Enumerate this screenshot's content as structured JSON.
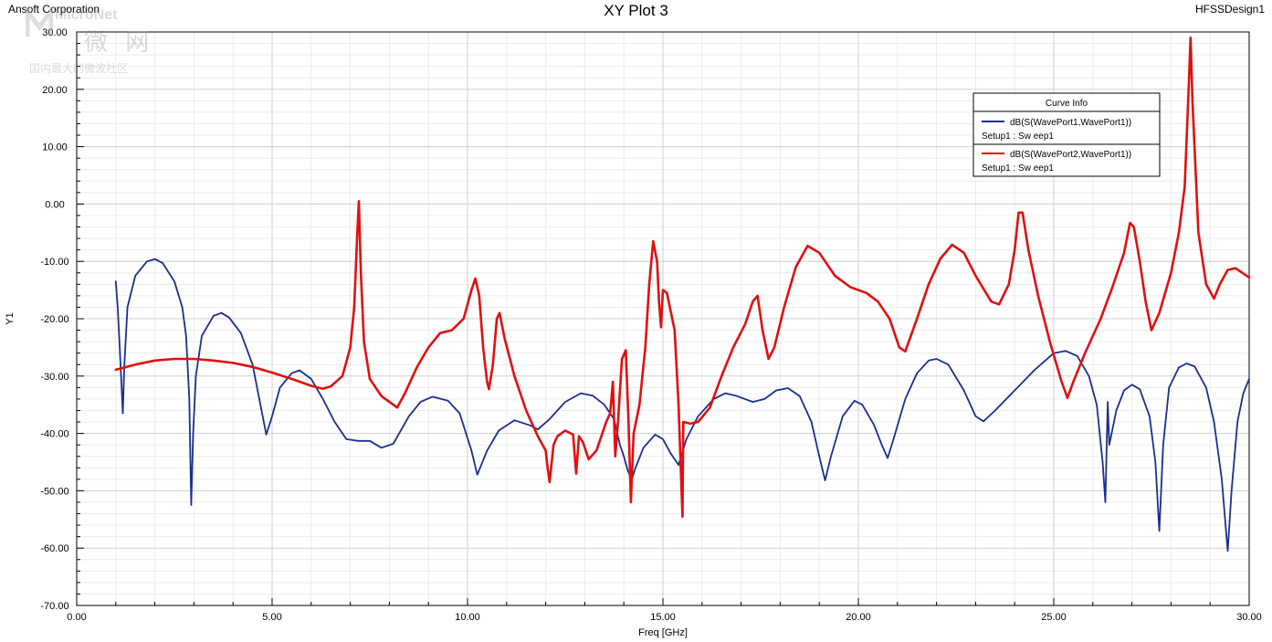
{
  "header": {
    "company": "Ansoft Corporation",
    "title": "XY Plot 3",
    "design": "HFSSDesign1"
  },
  "watermark": {
    "name": "MicroNet",
    "chinese": "微 网",
    "subtitle": "国内最大的微波社区"
  },
  "chart_data": {
    "type": "line",
    "title": "XY Plot 3",
    "xlabel": "Freq [GHz]",
    "ylabel": "Y1",
    "xlim": [
      0,
      30
    ],
    "ylim": [
      -70,
      30
    ],
    "x_ticks": [
      "0.00",
      "5.00",
      "10.00",
      "15.00",
      "20.00",
      "25.00",
      "30.00"
    ],
    "y_ticks": [
      "30.00",
      "20.00",
      "10.00",
      "0.00",
      "-10.00",
      "-20.00",
      "-30.00",
      "-40.00",
      "-50.00",
      "-60.00",
      "-70.00"
    ],
    "grid": true,
    "legend": {
      "title": "Curve Info",
      "placement": "top-right",
      "entries": [
        {
          "name": "dB(S(WavePort1,WavePort1))",
          "setup": "Setup1 : Sw eep1",
          "color": "#1a2f8f"
        },
        {
          "name": "dB(S(WavePort2,WavePort1))",
          "setup": "Setup1 : Sw eep1",
          "color": "#e01010"
        }
      ]
    },
    "series": [
      {
        "name": "dB(S(WavePort1,WavePort1))",
        "color": "#1a2f8f",
        "points": [
          [
            1.0,
            -13.5
          ],
          [
            1.05,
            -18
          ],
          [
            1.1,
            -25
          ],
          [
            1.15,
            -32
          ],
          [
            1.18,
            -36.5
          ],
          [
            1.22,
            -28
          ],
          [
            1.3,
            -18
          ],
          [
            1.5,
            -12.5
          ],
          [
            1.8,
            -10
          ],
          [
            2.0,
            -9.6
          ],
          [
            2.2,
            -10.3
          ],
          [
            2.5,
            -13.5
          ],
          [
            2.7,
            -18
          ],
          [
            2.8,
            -23
          ],
          [
            2.88,
            -34
          ],
          [
            2.93,
            -52.5
          ],
          [
            2.98,
            -40
          ],
          [
            3.05,
            -30
          ],
          [
            3.2,
            -23
          ],
          [
            3.5,
            -19.5
          ],
          [
            3.7,
            -19
          ],
          [
            3.9,
            -19.8
          ],
          [
            4.2,
            -22.5
          ],
          [
            4.5,
            -28
          ],
          [
            4.7,
            -35
          ],
          [
            4.85,
            -40.2
          ],
          [
            5.0,
            -37
          ],
          [
            5.2,
            -32
          ],
          [
            5.5,
            -29.5
          ],
          [
            5.7,
            -29
          ],
          [
            6.0,
            -30.5
          ],
          [
            6.3,
            -34
          ],
          [
            6.6,
            -38
          ],
          [
            6.9,
            -41
          ],
          [
            7.2,
            -41.3
          ],
          [
            7.5,
            -41.3
          ],
          [
            7.8,
            -42.5
          ],
          [
            8.1,
            -41.8
          ],
          [
            8.5,
            -37
          ],
          [
            8.8,
            -34.5
          ],
          [
            9.1,
            -33.6
          ],
          [
            9.5,
            -34.3
          ],
          [
            9.8,
            -36.5
          ],
          [
            10.1,
            -43
          ],
          [
            10.25,
            -47.2
          ],
          [
            10.5,
            -43
          ],
          [
            10.8,
            -39.5
          ],
          [
            11.2,
            -37.7
          ],
          [
            11.6,
            -38.6
          ],
          [
            11.8,
            -39.3
          ],
          [
            12.1,
            -37.5
          ],
          [
            12.5,
            -34.5
          ],
          [
            12.9,
            -33
          ],
          [
            13.2,
            -33.4
          ],
          [
            13.5,
            -35
          ],
          [
            13.75,
            -37.5
          ],
          [
            13.9,
            -42
          ],
          [
            14.0,
            -44
          ],
          [
            14.1,
            -46.5
          ],
          [
            14.2,
            -48
          ],
          [
            14.3,
            -46
          ],
          [
            14.5,
            -42.5
          ],
          [
            14.8,
            -40.2
          ],
          [
            15.0,
            -41
          ],
          [
            15.2,
            -43.5
          ],
          [
            15.4,
            -45.5
          ],
          [
            15.6,
            -41
          ],
          [
            15.9,
            -37
          ],
          [
            16.3,
            -34
          ],
          [
            16.6,
            -33
          ],
          [
            16.9,
            -33.5
          ],
          [
            17.3,
            -34.5
          ],
          [
            17.6,
            -34
          ],
          [
            17.9,
            -32.5
          ],
          [
            18.2,
            -32.1
          ],
          [
            18.5,
            -33.5
          ],
          [
            18.8,
            -38
          ],
          [
            19.0,
            -44
          ],
          [
            19.15,
            -48.2
          ],
          [
            19.3,
            -44
          ],
          [
            19.6,
            -37
          ],
          [
            19.9,
            -34.3
          ],
          [
            20.1,
            -35
          ],
          [
            20.4,
            -38.5
          ],
          [
            20.6,
            -42
          ],
          [
            20.75,
            -44.3
          ],
          [
            20.9,
            -41
          ],
          [
            21.2,
            -34
          ],
          [
            21.5,
            -29.5
          ],
          [
            21.8,
            -27.3
          ],
          [
            22.0,
            -27
          ],
          [
            22.3,
            -28
          ],
          [
            22.7,
            -32.5
          ],
          [
            23.0,
            -37
          ],
          [
            23.2,
            -37.9
          ],
          [
            23.5,
            -36
          ],
          [
            24.0,
            -32.5
          ],
          [
            24.5,
            -29
          ],
          [
            25.0,
            -26
          ],
          [
            25.3,
            -25.6
          ],
          [
            25.6,
            -26.5
          ],
          [
            25.9,
            -30
          ],
          [
            26.1,
            -35
          ],
          [
            26.25,
            -45
          ],
          [
            26.32,
            -52
          ],
          [
            26.38,
            -34.5
          ],
          [
            26.42,
            -42
          ],
          [
            26.6,
            -36
          ],
          [
            26.8,
            -32.5
          ],
          [
            27.0,
            -31.5
          ],
          [
            27.2,
            -32.3
          ],
          [
            27.45,
            -37
          ],
          [
            27.6,
            -45
          ],
          [
            27.7,
            -57
          ],
          [
            27.8,
            -42
          ],
          [
            27.95,
            -32
          ],
          [
            28.2,
            -28.5
          ],
          [
            28.4,
            -27.8
          ],
          [
            28.6,
            -28.3
          ],
          [
            28.9,
            -32
          ],
          [
            29.1,
            -38
          ],
          [
            29.3,
            -48
          ],
          [
            29.45,
            -60.5
          ],
          [
            29.55,
            -50
          ],
          [
            29.7,
            -38
          ],
          [
            29.85,
            -33
          ],
          [
            30.0,
            -30.5
          ]
        ]
      },
      {
        "name": "dB(S(WavePort2,WavePort1))",
        "color": "#e01010",
        "points": [
          [
            1.0,
            -28.9
          ],
          [
            1.5,
            -28
          ],
          [
            2.0,
            -27.3
          ],
          [
            2.5,
            -27
          ],
          [
            3.0,
            -27
          ],
          [
            3.5,
            -27.3
          ],
          [
            4.0,
            -27.7
          ],
          [
            4.5,
            -28.4
          ],
          [
            5.0,
            -29.4
          ],
          [
            5.5,
            -30.5
          ],
          [
            6.0,
            -31.7
          ],
          [
            6.3,
            -32.2
          ],
          [
            6.5,
            -31.8
          ],
          [
            6.8,
            -30
          ],
          [
            7.0,
            -25
          ],
          [
            7.1,
            -18
          ],
          [
            7.18,
            -5
          ],
          [
            7.22,
            0.5
          ],
          [
            7.27,
            -12
          ],
          [
            7.35,
            -24
          ],
          [
            7.5,
            -30.5
          ],
          [
            7.8,
            -33.5
          ],
          [
            8.0,
            -34.5
          ],
          [
            8.2,
            -35.5
          ],
          [
            8.4,
            -33
          ],
          [
            8.7,
            -28.5
          ],
          [
            9.0,
            -25
          ],
          [
            9.3,
            -22.5
          ],
          [
            9.6,
            -22
          ],
          [
            9.9,
            -20
          ],
          [
            10.1,
            -15
          ],
          [
            10.2,
            -13
          ],
          [
            10.3,
            -16
          ],
          [
            10.4,
            -25
          ],
          [
            10.5,
            -31
          ],
          [
            10.55,
            -32.3
          ],
          [
            10.65,
            -28
          ],
          [
            10.75,
            -20
          ],
          [
            10.82,
            -19
          ],
          [
            10.95,
            -23.5
          ],
          [
            11.2,
            -30
          ],
          [
            11.5,
            -36
          ],
          [
            11.8,
            -40.5
          ],
          [
            12.0,
            -43
          ],
          [
            12.05,
            -46
          ],
          [
            12.1,
            -48.5
          ],
          [
            12.2,
            -42
          ],
          [
            12.3,
            -40.5
          ],
          [
            12.5,
            -39.5
          ],
          [
            12.7,
            -40.2
          ],
          [
            12.78,
            -47
          ],
          [
            12.85,
            -40.5
          ],
          [
            12.95,
            -41.5
          ],
          [
            13.1,
            -44.5
          ],
          [
            13.3,
            -43
          ],
          [
            13.55,
            -38
          ],
          [
            13.65,
            -36.5
          ],
          [
            13.72,
            -31
          ],
          [
            13.78,
            -44
          ],
          [
            13.85,
            -38
          ],
          [
            13.95,
            -27
          ],
          [
            14.05,
            -25.5
          ],
          [
            14.12,
            -38
          ],
          [
            14.18,
            -52
          ],
          [
            14.25,
            -40
          ],
          [
            14.4,
            -35
          ],
          [
            14.55,
            -25
          ],
          [
            14.65,
            -14
          ],
          [
            14.75,
            -6.5
          ],
          [
            14.85,
            -10
          ],
          [
            14.9,
            -17
          ],
          [
            14.95,
            -21.5
          ],
          [
            15.0,
            -15
          ],
          [
            15.1,
            -15.5
          ],
          [
            15.3,
            -22
          ],
          [
            15.4,
            -35
          ],
          [
            15.45,
            -45
          ],
          [
            15.5,
            -54.5
          ],
          [
            15.52,
            -38
          ],
          [
            15.7,
            -38.3
          ],
          [
            15.9,
            -38
          ],
          [
            16.2,
            -35.5
          ],
          [
            16.5,
            -30
          ],
          [
            16.8,
            -25
          ],
          [
            17.1,
            -21
          ],
          [
            17.3,
            -17
          ],
          [
            17.42,
            -16
          ],
          [
            17.55,
            -22
          ],
          [
            17.7,
            -27
          ],
          [
            17.85,
            -25
          ],
          [
            18.1,
            -18
          ],
          [
            18.4,
            -11
          ],
          [
            18.7,
            -7.3
          ],
          [
            19.0,
            -8.5
          ],
          [
            19.4,
            -12.5
          ],
          [
            19.8,
            -14.5
          ],
          [
            20.2,
            -15.5
          ],
          [
            20.5,
            -17
          ],
          [
            20.8,
            -20
          ],
          [
            21.05,
            -25
          ],
          [
            21.2,
            -25.7
          ],
          [
            21.5,
            -20
          ],
          [
            21.8,
            -14
          ],
          [
            22.1,
            -9.5
          ],
          [
            22.4,
            -7.1
          ],
          [
            22.7,
            -8.5
          ],
          [
            23.0,
            -12.5
          ],
          [
            23.4,
            -17
          ],
          [
            23.6,
            -17.5
          ],
          [
            23.85,
            -14
          ],
          [
            24.0,
            -8
          ],
          [
            24.1,
            -1.5
          ],
          [
            24.2,
            -1.5
          ],
          [
            24.35,
            -8
          ],
          [
            24.6,
            -16
          ],
          [
            24.9,
            -24
          ],
          [
            25.2,
            -31
          ],
          [
            25.35,
            -33.8
          ],
          [
            25.5,
            -31
          ],
          [
            25.8,
            -26
          ],
          [
            26.2,
            -20
          ],
          [
            26.5,
            -14.5
          ],
          [
            26.8,
            -8.5
          ],
          [
            26.95,
            -3.3
          ],
          [
            27.05,
            -4
          ],
          [
            27.2,
            -10
          ],
          [
            27.35,
            -17
          ],
          [
            27.5,
            -22
          ],
          [
            27.7,
            -19
          ],
          [
            28.0,
            -12
          ],
          [
            28.2,
            -5
          ],
          [
            28.35,
            3
          ],
          [
            28.45,
            20
          ],
          [
            28.5,
            29
          ],
          [
            28.55,
            18
          ],
          [
            28.7,
            -5
          ],
          [
            28.9,
            -14
          ],
          [
            29.1,
            -16.5
          ],
          [
            29.25,
            -14
          ],
          [
            29.45,
            -11.5
          ],
          [
            29.65,
            -11.2
          ],
          [
            30.0,
            -12.8
          ]
        ]
      }
    ]
  }
}
